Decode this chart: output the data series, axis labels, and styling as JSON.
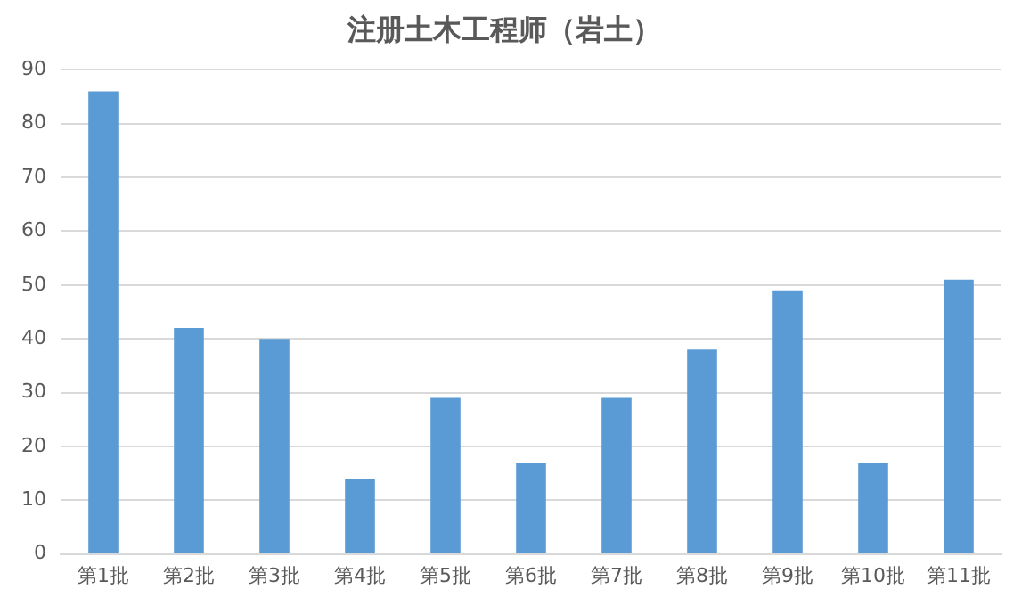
{
  "chart_data": {
    "type": "bar",
    "title": "注册土木工程师（岩土）",
    "categories": [
      "第1批",
      "第2批",
      "第3批",
      "第4批",
      "第5批",
      "第6批",
      "第7批",
      "第8批",
      "第9批",
      "第10批",
      "第11批"
    ],
    "values": [
      86,
      42,
      40,
      14,
      29,
      17,
      29,
      38,
      49,
      17,
      51
    ],
    "color": "#5b9bd5",
    "ylim": [
      0,
      90
    ],
    "yticks": [
      0,
      10,
      20,
      30,
      40,
      50,
      60,
      70,
      80,
      90
    ],
    "grid": "y",
    "legend": false
  }
}
